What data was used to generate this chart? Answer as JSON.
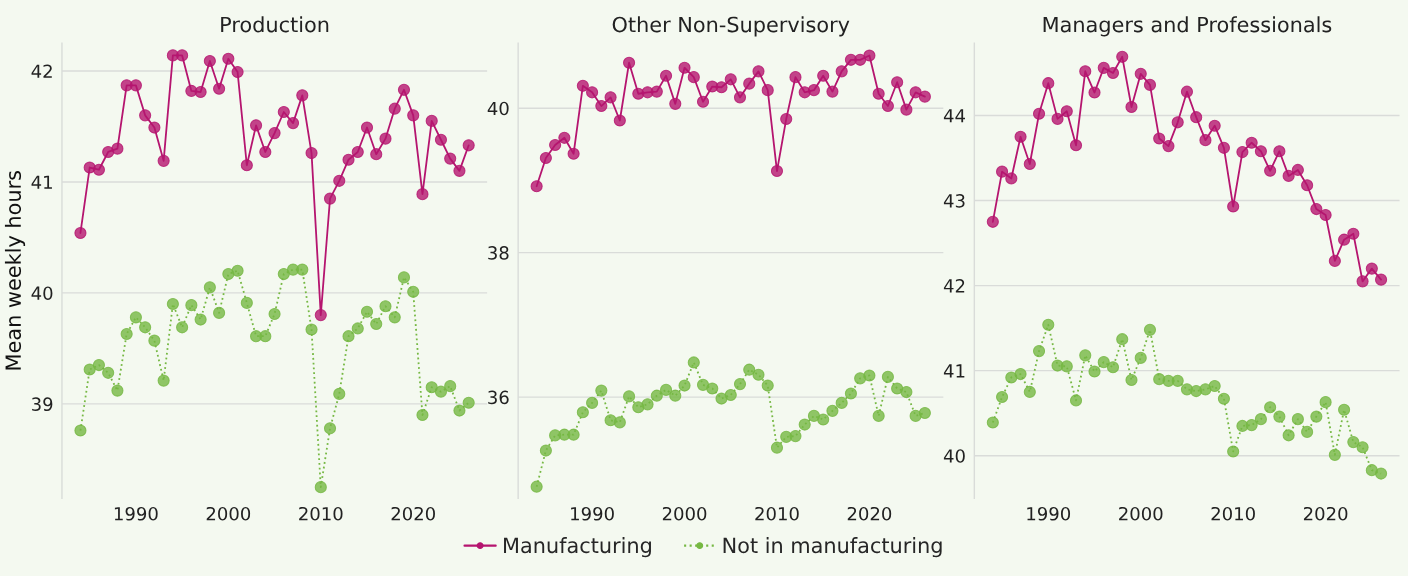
{
  "chart_data": [
    {
      "type": "line",
      "title": "Production",
      "ylabel": "Mean weekly hours",
      "x": [
        1984,
        1985,
        1986,
        1987,
        1988,
        1989,
        1990,
        1991,
        1992,
        1993,
        1994,
        1995,
        1996,
        1997,
        1998,
        1999,
        2000,
        2001,
        2002,
        2003,
        2004,
        2005,
        2006,
        2007,
        2008,
        2009,
        2010,
        2011,
        2012,
        2013,
        2014,
        2015,
        2016,
        2017,
        2018,
        2019,
        2020,
        2021,
        2022,
        2023,
        2024,
        2025,
        2026
      ],
      "xlim": [
        1982,
        2028
      ],
      "xticks": [
        1990,
        2000,
        2010,
        2020
      ],
      "ylim": [
        38.15,
        42.25
      ],
      "yticks": [
        39,
        40,
        41,
        42
      ],
      "grid": "y",
      "legend": "bottom",
      "marker": "circle",
      "series": [
        {
          "name": "Manufacturing",
          "color": "#b5156f",
          "line_style": "solid",
          "values": [
            40.54,
            41.13,
            41.11,
            41.27,
            41.3,
            41.87,
            41.87,
            41.6,
            41.49,
            41.19,
            42.14,
            42.14,
            41.82,
            41.81,
            42.09,
            41.84,
            42.11,
            41.99,
            41.15,
            41.51,
            41.27,
            41.44,
            41.63,
            41.53,
            41.78,
            41.26,
            39.8,
            40.85,
            41.01,
            41.2,
            41.27,
            41.49,
            41.25,
            41.39,
            41.66,
            41.83,
            41.6,
            40.89,
            41.55,
            41.38,
            41.21,
            41.1,
            41.33
          ]
        },
        {
          "name": "Not in manufacturing",
          "color": "#76b843",
          "line_style": "dotted",
          "values": [
            38.76,
            39.31,
            39.35,
            39.28,
            39.12,
            39.63,
            39.78,
            39.69,
            39.57,
            39.21,
            39.9,
            39.69,
            39.89,
            39.76,
            40.05,
            39.82,
            40.17,
            40.2,
            39.91,
            39.61,
            39.61,
            39.81,
            40.17,
            40.21,
            40.21,
            39.67,
            38.25,
            38.78,
            39.09,
            39.61,
            39.68,
            39.83,
            39.72,
            39.88,
            39.78,
            40.14,
            40.01,
            38.9,
            39.15,
            39.11,
            39.16,
            38.94,
            39.01
          ]
        }
      ]
    },
    {
      "type": "line",
      "title": "Other Non-Supervisory",
      "x": [
        1984,
        1985,
        1986,
        1987,
        1988,
        1989,
        1990,
        1991,
        1992,
        1993,
        1994,
        1995,
        1996,
        1997,
        1998,
        1999,
        2000,
        2001,
        2002,
        2003,
        2004,
        2005,
        2006,
        2007,
        2008,
        2009,
        2010,
        2011,
        2012,
        2013,
        2014,
        2015,
        2016,
        2017,
        2018,
        2019,
        2020,
        2021,
        2022,
        2023,
        2024,
        2025,
        2026
      ],
      "xlim": [
        1982,
        2028
      ],
      "xticks": [
        1990,
        2000,
        2010,
        2020
      ],
      "ylim": [
        34.6,
        40.9
      ],
      "yticks": [
        36,
        38,
        40
      ],
      "grid": "y",
      "marker": "circle",
      "series": [
        {
          "name": "Manufacturing",
          "color": "#b5156f",
          "line_style": "solid",
          "values": [
            38.92,
            39.31,
            39.49,
            39.59,
            39.37,
            40.31,
            40.22,
            40.03,
            40.15,
            39.83,
            40.63,
            40.2,
            40.22,
            40.23,
            40.45,
            40.06,
            40.56,
            40.43,
            40.09,
            40.3,
            40.29,
            40.4,
            40.15,
            40.34,
            40.51,
            40.25,
            39.13,
            39.85,
            40.43,
            40.22,
            40.25,
            40.45,
            40.23,
            40.51,
            40.67,
            40.67,
            40.73,
            40.2,
            40.03,
            40.36,
            39.98,
            40.22,
            40.16
          ]
        },
        {
          "name": "Not in manufacturing",
          "color": "#76b843",
          "line_style": "dotted",
          "values": [
            34.76,
            35.26,
            35.47,
            35.48,
            35.48,
            35.79,
            35.92,
            36.09,
            35.68,
            35.65,
            36.01,
            35.86,
            35.9,
            36.02,
            36.1,
            36.02,
            36.16,
            36.48,
            36.17,
            36.12,
            35.98,
            36.03,
            36.18,
            36.38,
            36.31,
            36.16,
            35.3,
            35.45,
            35.46,
            35.62,
            35.74,
            35.69,
            35.81,
            35.92,
            36.05,
            36.26,
            36.3,
            35.74,
            36.28,
            36.12,
            36.07,
            35.74,
            35.78
          ]
        }
      ]
    },
    {
      "type": "line",
      "title": "Managers and Professionals",
      "x": [
        1984,
        1985,
        1986,
        1987,
        1988,
        1989,
        1990,
        1991,
        1992,
        1993,
        1994,
        1995,
        1996,
        1997,
        1998,
        1999,
        2000,
        2001,
        2002,
        2003,
        2004,
        2005,
        2006,
        2007,
        2008,
        2009,
        2010,
        2011,
        2012,
        2013,
        2014,
        2015,
        2016,
        2017,
        2018,
        2019,
        2020,
        2021,
        2022,
        2023,
        2024,
        2025,
        2026
      ],
      "xlim": [
        1982,
        2028
      ],
      "xticks": [
        1990,
        2000,
        2010,
        2020
      ],
      "ylim": [
        39.5,
        44.85
      ],
      "yticks": [
        40,
        41,
        42,
        43,
        44
      ],
      "grid": "y",
      "marker": "circle",
      "series": [
        {
          "name": "Manufacturing",
          "color": "#b5156f",
          "line_style": "solid",
          "values": [
            42.75,
            43.34,
            43.26,
            43.75,
            43.43,
            44.02,
            44.38,
            43.96,
            44.05,
            43.65,
            44.52,
            44.27,
            44.56,
            44.5,
            44.69,
            44.1,
            44.49,
            44.36,
            43.73,
            43.64,
            43.92,
            44.28,
            43.98,
            43.71,
            43.88,
            43.62,
            42.93,
            43.57,
            43.68,
            43.58,
            43.35,
            43.58,
            43.29,
            43.36,
            43.18,
            42.9,
            42.83,
            42.29,
            42.54,
            42.61,
            42.05,
            42.2,
            42.07
          ]
        },
        {
          "name": "Not in manufacturing",
          "color": "#76b843",
          "line_style": "dotted",
          "values": [
            40.39,
            40.69,
            40.92,
            40.96,
            40.75,
            41.23,
            41.54,
            41.06,
            41.05,
            40.65,
            41.18,
            40.99,
            41.1,
            41.04,
            41.37,
            40.89,
            41.15,
            41.48,
            40.9,
            40.88,
            40.88,
            40.78,
            40.76,
            40.78,
            40.82,
            40.67,
            40.05,
            40.35,
            40.36,
            40.43,
            40.57,
            40.46,
            40.24,
            40.43,
            40.28,
            40.46,
            40.63,
            40.01,
            40.54,
            40.16,
            40.1,
            39.83,
            39.79
          ]
        }
      ]
    }
  ]
}
